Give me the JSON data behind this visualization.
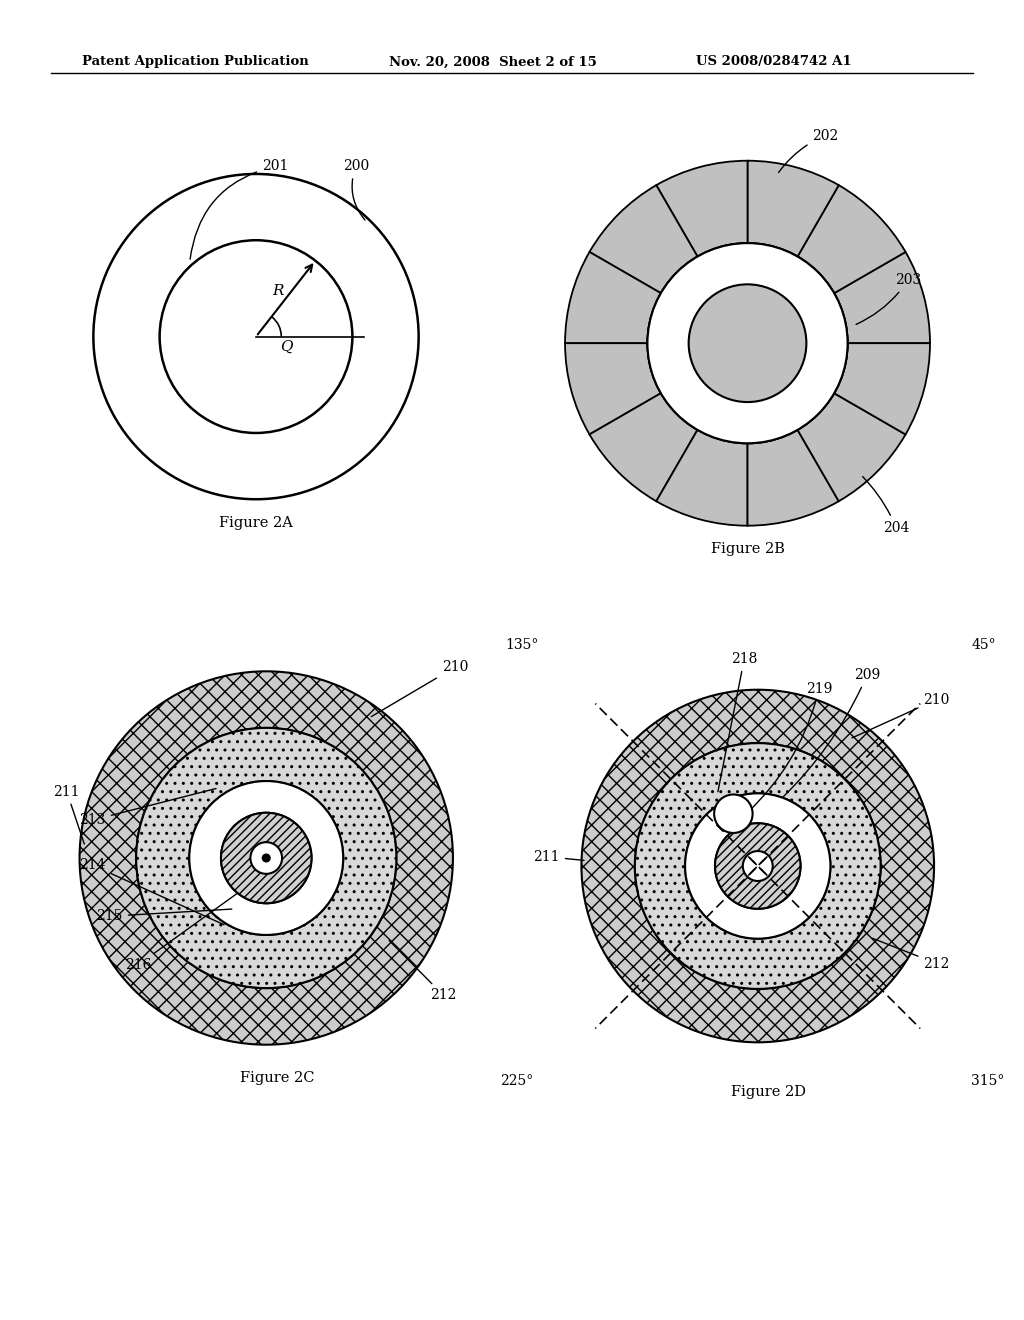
{
  "bg_color": "#ffffff",
  "header_left": "Patent Application Publication",
  "header_mid": "Nov. 20, 2008  Sheet 2 of 15",
  "header_right": "US 2008/0284742 A1",
  "fig2a_label": "Figure 2A",
  "fig2b_label": "Figure 2B",
  "fig2c_label": "Figure 2C",
  "fig2d_label": "Figure 2D",
  "gray_light": "#c0c0c0",
  "gray_med": "#a0a0a0",
  "black": "#000000",
  "white": "#ffffff"
}
